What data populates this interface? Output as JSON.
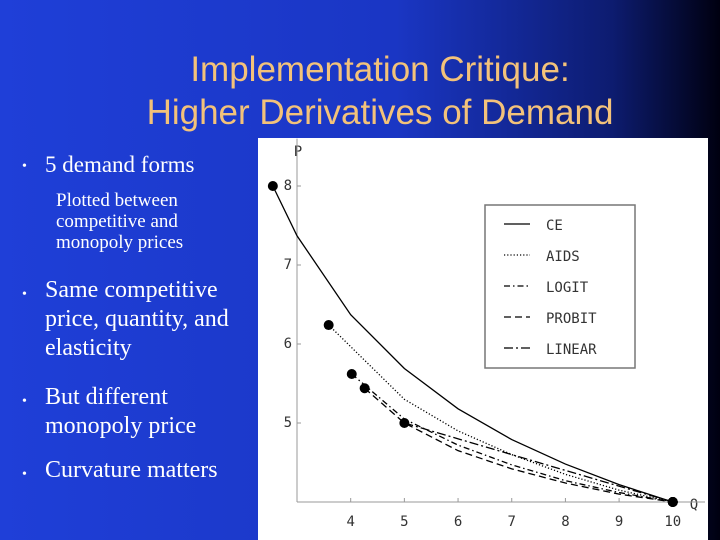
{
  "slide": {
    "title": [
      "Implementation Critique:",
      "Higher Derivatives of Demand"
    ],
    "bullets": [
      {
        "text": "5 demand forms",
        "sub": "Plotted between competitive and monopoly prices"
      },
      {
        "text": "Same competitive price, quantity, and elasticity"
      },
      {
        "text": "But different monopoly price"
      },
      {
        "text": "Curvature matters"
      }
    ]
  },
  "chart_data": {
    "type": "line",
    "xlabel": "Q",
    "ylabel": "P",
    "xlim": [
      3,
      10.6
    ],
    "ylim": [
      4,
      8.6
    ],
    "xticks": [
      4,
      5,
      6,
      7,
      8,
      9,
      10
    ],
    "yticks": [
      5,
      6,
      7,
      8
    ],
    "legend": "upper right",
    "series": [
      {
        "name": "CE",
        "color": "#000000",
        "style": "solid",
        "x": [
          2.55,
          3,
          4,
          5,
          6,
          7,
          8,
          9,
          10
        ],
        "values": [
          8,
          7.37,
          6.37,
          5.69,
          5.18,
          4.79,
          4.48,
          4.22,
          4
        ]
      },
      {
        "name": "AIDS",
        "color": "#000000",
        "style": "dotted",
        "x": [
          3.59,
          5,
          6,
          7,
          8,
          9,
          10
        ],
        "values": [
          6.24,
          5.3,
          4.9,
          4.6,
          4.35,
          4.15,
          4
        ]
      },
      {
        "name": "LOGIT",
        "color": "#000000",
        "style": "dashdot",
        "x": [
          4.02,
          5,
          6,
          7,
          8,
          9,
          10
        ],
        "values": [
          5.62,
          5.05,
          4.72,
          4.47,
          4.27,
          4.12,
          4
        ]
      },
      {
        "name": "PROBIT",
        "color": "#000000",
        "style": "dashed",
        "x": [
          4.26,
          5,
          6,
          7,
          8,
          9,
          10
        ],
        "values": [
          5.44,
          5,
          4.65,
          4.42,
          4.24,
          4.1,
          4
        ]
      },
      {
        "name": "LINEAR",
        "color": "#000000",
        "style": "longdashdot",
        "x": [
          5,
          10
        ],
        "values": [
          5,
          4
        ]
      }
    ]
  }
}
